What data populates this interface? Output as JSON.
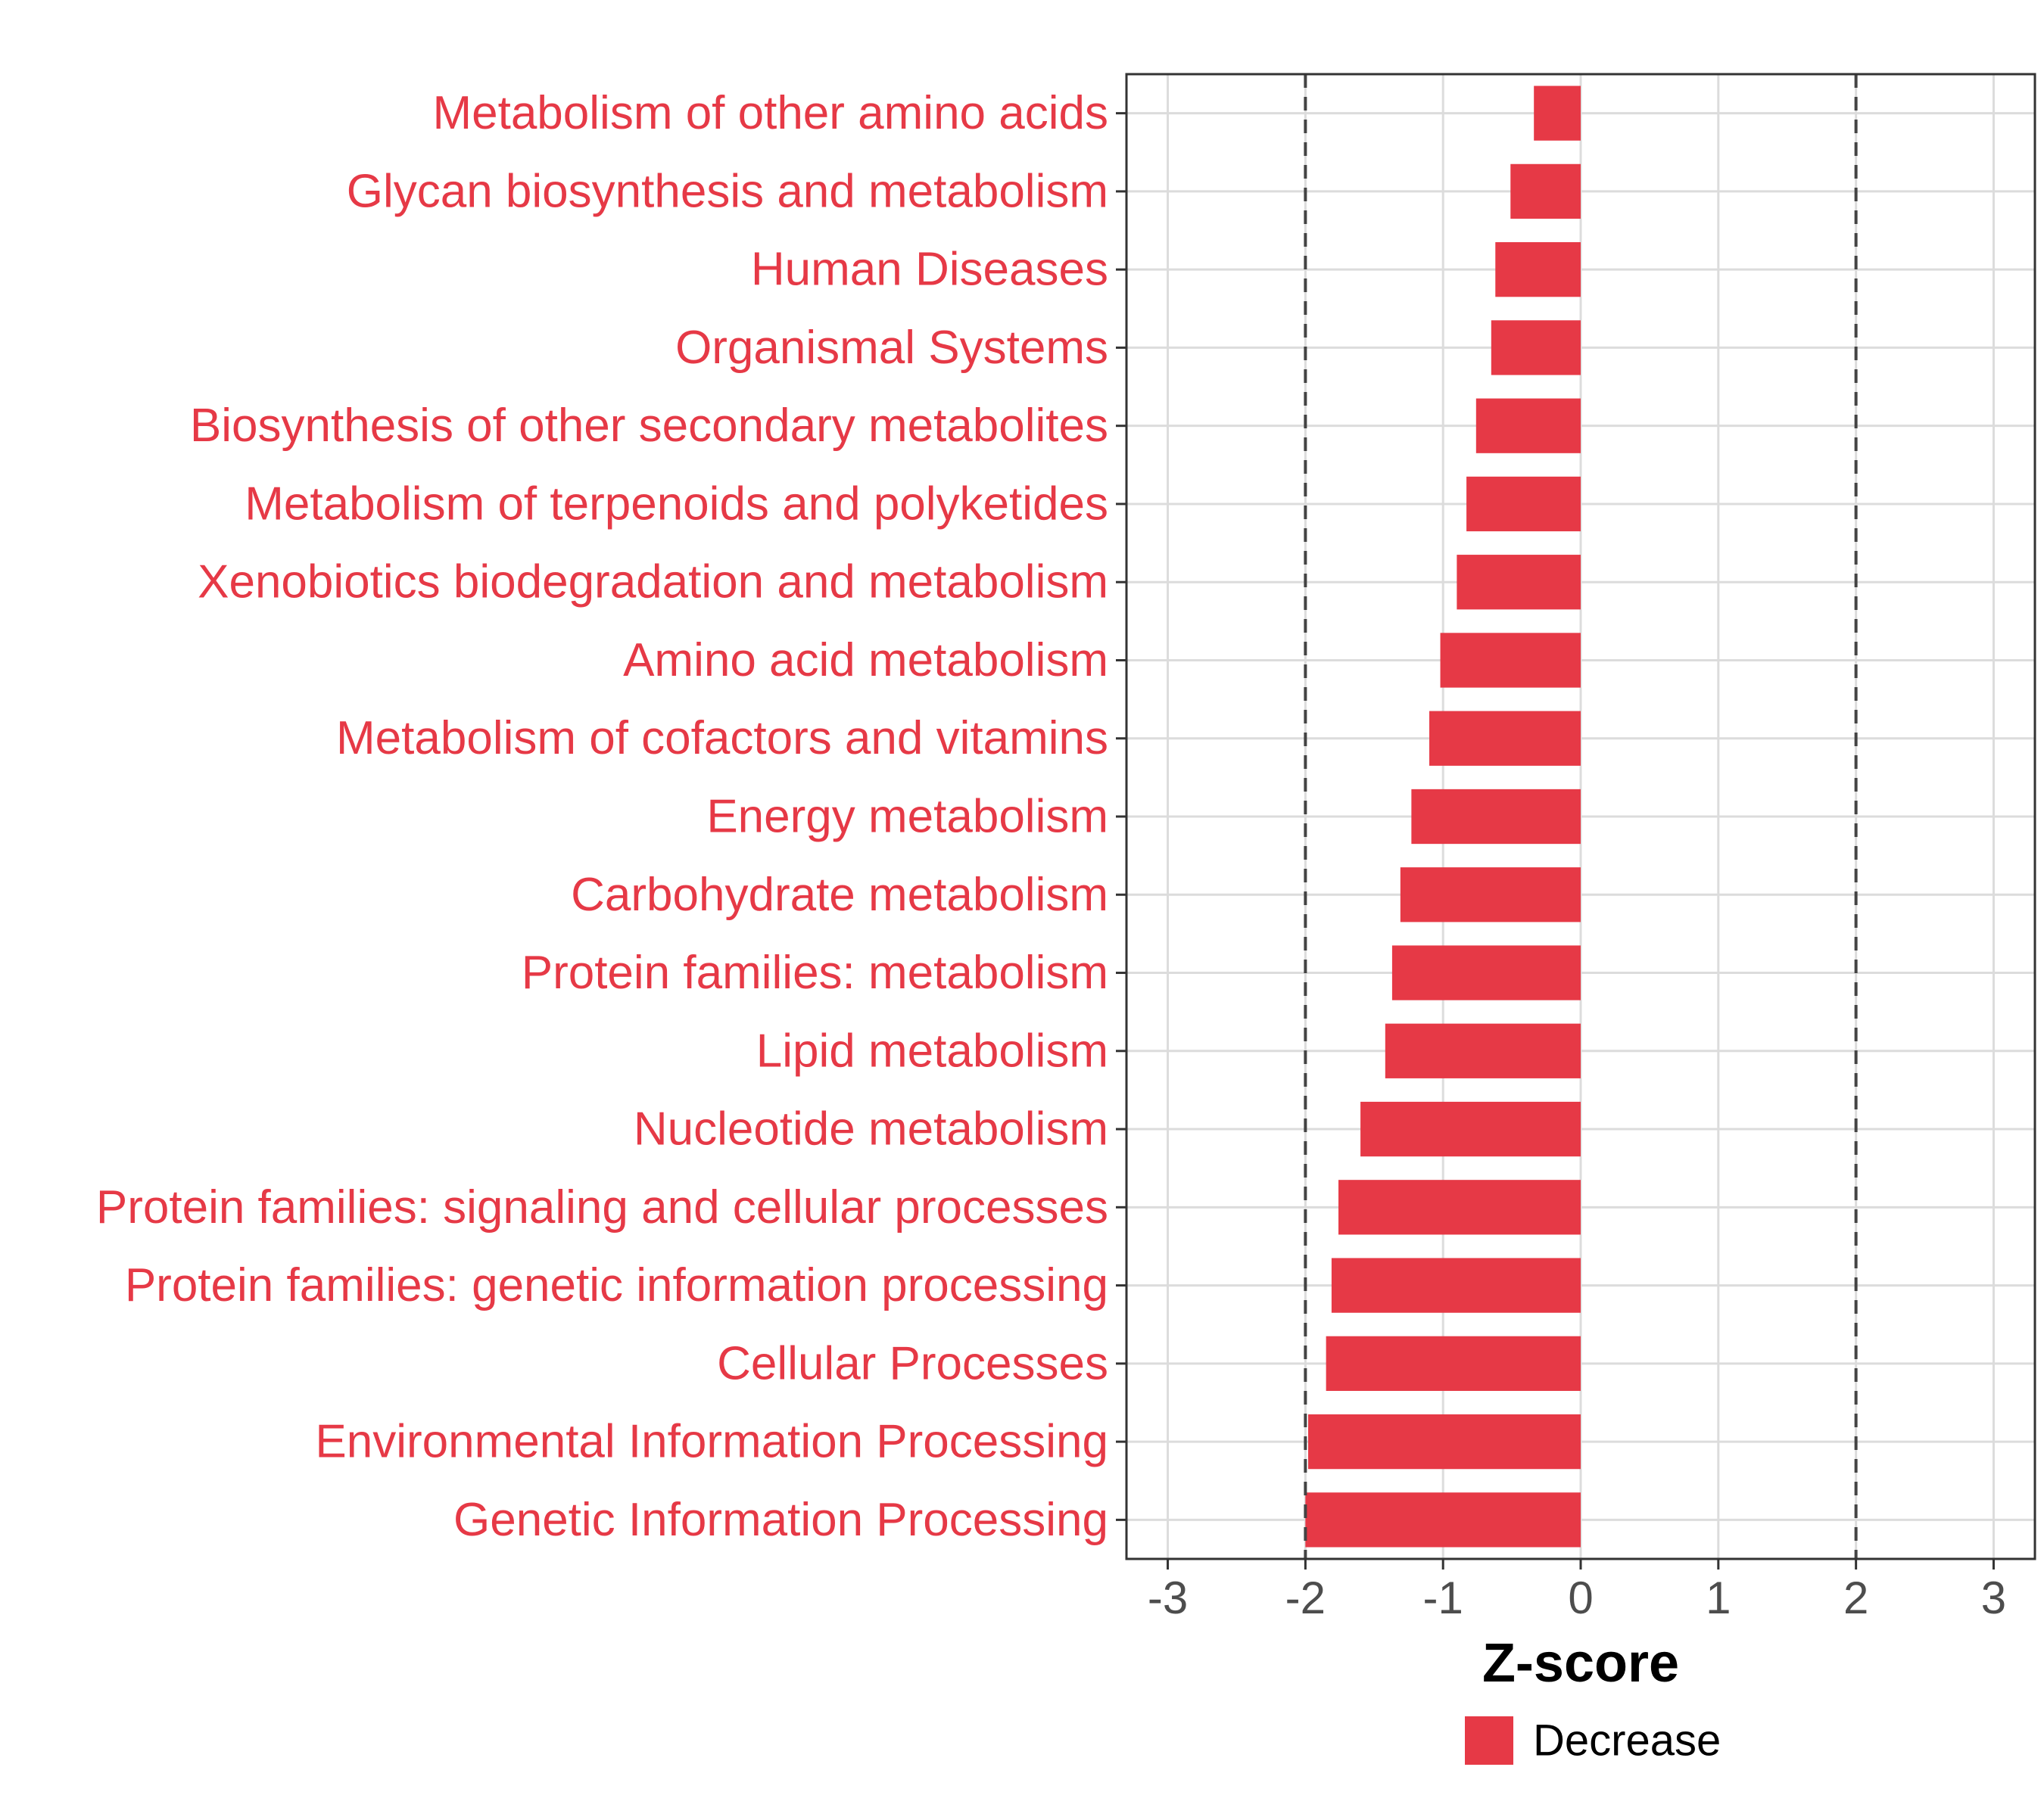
{
  "chart_data": {
    "type": "bar",
    "orientation": "horizontal",
    "categories": [
      "Metabolism of other amino acids",
      "Glycan biosynthesis and metabolism",
      "Human Diseases",
      "Organismal Systems",
      "Biosynthesis of other secondary metabolites",
      "Metabolism of terpenoids and polyketides",
      "Xenobiotics biodegradation and metabolism",
      "Amino acid metabolism",
      "Metabolism of cofactors and vitamins",
      "Energy metabolism",
      "Carbohydrate metabolism",
      "Protein families: metabolism",
      "Lipid metabolism",
      "Nucleotide metabolism",
      "Protein families: signaling and cellular processes",
      "Protein families: genetic information processing",
      "Cellular Processes",
      "Environmental Information Processing",
      "Genetic Information Processing"
    ],
    "series": [
      {
        "name": "Decrease",
        "color": "#E63946",
        "values": [
          -0.34,
          -0.51,
          -0.62,
          -0.65,
          -0.76,
          -0.83,
          -0.9,
          -1.02,
          -1.1,
          -1.23,
          -1.31,
          -1.37,
          -1.42,
          -1.6,
          -1.76,
          -1.81,
          -1.85,
          -1.98,
          -2.0
        ]
      }
    ],
    "xlabel": "Z-score",
    "ylabel": "",
    "xlim": [
      -3.3,
      3.3
    ],
    "xticks": [
      "-3",
      "-2",
      "-1",
      "0",
      "1",
      "2",
      "3"
    ],
    "xtick_values": [
      -3,
      -2,
      -1,
      0,
      1,
      2,
      3
    ],
    "reference_lines": [
      -2,
      2
    ],
    "label_color": "#E63946",
    "grid": true,
    "legend": {
      "position": "bottom",
      "entries": [
        "Decrease"
      ]
    }
  }
}
